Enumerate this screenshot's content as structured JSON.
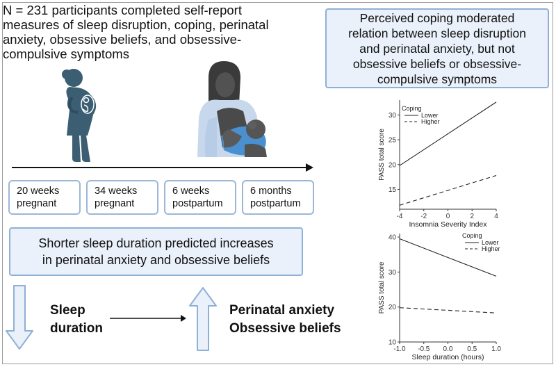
{
  "intro": {
    "lines": [
      "N = 231 participants completed self-report",
      "measures of sleep disruption, coping, perinatal",
      "anxiety, obsessive beliefs, and obsessive-",
      "compulsive symptoms"
    ]
  },
  "finding_box": {
    "lines": [
      "Perceived coping moderated",
      "relation between sleep disruption",
      "and perinatal anxiety, but not",
      "obsessive beliefs or obsessive-",
      "compulsive symptoms"
    ]
  },
  "timeline": [
    {
      "line1": "20 weeks",
      "line2": "pregnant"
    },
    {
      "line1": "34 weeks",
      "line2": "pregnant"
    },
    {
      "line1": "6 weeks",
      "line2": "postpartum"
    },
    {
      "line1": "6 months",
      "line2": "postpartum"
    }
  ],
  "duration_box": {
    "line1": "Shorter sleep duration predicted increases",
    "line2": "in perinatal anxiety and obsessive beliefs"
  },
  "bottom": {
    "left_line1": "Sleep",
    "left_line2": "duration",
    "right_line1": "Perinatal anxiety",
    "right_line2": "Obsessive beliefs"
  },
  "colors": {
    "box_fill": "#eaf1fa",
    "box_border": "#8fb0d6",
    "pregnant_figure": "#3b5e73",
    "mother_skin": "#4a4a4a",
    "shawl": "#c8d8ec",
    "baby_wrap": "#4a90d0"
  },
  "chart_data": [
    {
      "type": "line",
      "title": "",
      "xlabel": "Insomnia Severity Index",
      "ylabel": "PASS total score",
      "xlim": [
        -4,
        4
      ],
      "ylim": [
        11,
        33
      ],
      "x_ticks": [
        -4,
        -2,
        0,
        2,
        4
      ],
      "y_ticks": [
        15,
        20,
        25,
        30
      ],
      "legend_title": "Coping",
      "legend_position": "top-left",
      "series": [
        {
          "name": "Lower",
          "style": "solid",
          "x": [
            -4,
            4
          ],
          "y": [
            19.8,
            32.6
          ]
        },
        {
          "name": "Higher",
          "style": "dashed",
          "x": [
            -4,
            4
          ],
          "y": [
            11.8,
            17.8
          ]
        }
      ]
    },
    {
      "type": "line",
      "title": "",
      "xlabel": "Sleep duration (hours)",
      "ylabel": "PASS total score",
      "xlim": [
        -1.0,
        1.0
      ],
      "ylim": [
        10,
        41
      ],
      "x_ticks": [
        -1.0,
        -0.5,
        0.0,
        0.5,
        1.0
      ],
      "y_ticks": [
        10,
        20,
        30,
        40
      ],
      "legend_title": "Coping",
      "legend_position": "top-right",
      "series": [
        {
          "name": "Lower",
          "style": "solid",
          "x": [
            -1.0,
            1.0
          ],
          "y": [
            39.5,
            28.8
          ]
        },
        {
          "name": "Higher",
          "style": "dashed",
          "x": [
            -1.0,
            1.0
          ],
          "y": [
            19.8,
            18.3
          ]
        }
      ]
    }
  ]
}
